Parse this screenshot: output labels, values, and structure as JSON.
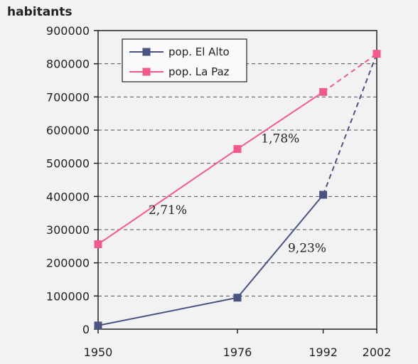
{
  "chart_data": {
    "type": "line",
    "ylabel": "habitants",
    "x": [
      1950,
      1976,
      1992,
      2002
    ],
    "x_tick_labels": [
      "1950",
      "1976",
      "1992",
      "2002"
    ],
    "ylim": [
      0,
      900000
    ],
    "y_ticks": [
      0,
      100000,
      200000,
      300000,
      400000,
      500000,
      600000,
      700000,
      800000,
      900000
    ],
    "y_tick_labels": [
      "0",
      "100000",
      "200000",
      "300000",
      "400000",
      "500000",
      "600000",
      "700000",
      "800000",
      "900000"
    ],
    "grid": "horizontal dashed",
    "legend_position": "top-left",
    "series": [
      {
        "name": "pop. El Alto",
        "color": "#4a5480",
        "marker": "square",
        "values": [
          11000,
          95000,
          405000,
          830000
        ],
        "dashed_from_index": 2
      },
      {
        "name": "pop. La Paz",
        "color": "#f25a8a",
        "marker": "square",
        "values": [
          256000,
          543000,
          715000,
          830000
        ],
        "dashed_from_index": 2
      }
    ],
    "annotations": [
      {
        "text": "2,71%",
        "x": 1963,
        "y": 360000
      },
      {
        "text": "1,78%",
        "x": 1984,
        "y": 575000
      },
      {
        "text": "9,23%",
        "x": 1989,
        "y": 245000
      }
    ]
  }
}
